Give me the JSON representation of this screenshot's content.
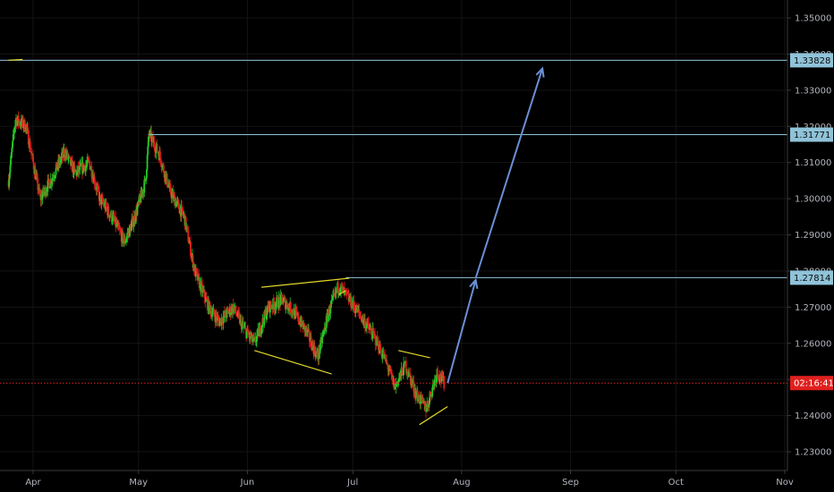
{
  "chart_data": {
    "type": "candlestick",
    "title": "",
    "instrument": "",
    "colors": {
      "up": "#26c926",
      "down": "#e0201e",
      "hline": "#8fc3d9",
      "arrow": "#6b8fd6",
      "trend": "#e3d72c",
      "current": "#e0201e",
      "background": "#000000",
      "axis_text": "#b2b5be"
    },
    "x_axis": {
      "labels": [
        {
          "text": "Apr",
          "date": "2018-04-01"
        },
        {
          "text": "May",
          "date": "2018-05-01"
        },
        {
          "text": "Jun",
          "date": "2018-06-01"
        },
        {
          "text": "Jul",
          "date": "2018-07-01"
        },
        {
          "text": "Aug",
          "date": "2018-08-01"
        },
        {
          "text": "Sep",
          "date": "2018-09-01"
        },
        {
          "text": "Oct",
          "date": "2018-10-01"
        },
        {
          "text": "Nov",
          "date": "2018-11-01"
        }
      ],
      "range": [
        "2018-03-25",
        "2018-11-01"
      ]
    },
    "y_axis": {
      "ticks": [
        "1.35000",
        "1.34000",
        "1.33000",
        "1.32000",
        "1.31000",
        "1.30000",
        "1.29000",
        "1.28000",
        "1.27000",
        "1.26000",
        "1.25000",
        "1.24000",
        "1.23000"
      ],
      "ylim": [
        1.2225,
        1.3535
      ]
    },
    "price_path": [
      {
        "date": "2018-03-25",
        "price": 1.305
      },
      {
        "date": "2018-03-27",
        "price": 1.322
      },
      {
        "date": "2018-03-30",
        "price": 1.32
      },
      {
        "date": "2018-04-03",
        "price": 1.3
      },
      {
        "date": "2018-04-06",
        "price": 1.305
      },
      {
        "date": "2018-04-10",
        "price": 1.313
      },
      {
        "date": "2018-04-13",
        "price": 1.307
      },
      {
        "date": "2018-04-17",
        "price": 1.31
      },
      {
        "date": "2018-04-20",
        "price": 1.3
      },
      {
        "date": "2018-04-24",
        "price": 1.294
      },
      {
        "date": "2018-04-27",
        "price": 1.288
      },
      {
        "date": "2018-04-30",
        "price": 1.295
      },
      {
        "date": "2018-05-03",
        "price": 1.305
      },
      {
        "date": "2018-05-04",
        "price": 1.318
      },
      {
        "date": "2018-05-07",
        "price": 1.312
      },
      {
        "date": "2018-05-10",
        "price": 1.302
      },
      {
        "date": "2018-05-14",
        "price": 1.295
      },
      {
        "date": "2018-05-17",
        "price": 1.28
      },
      {
        "date": "2018-05-21",
        "price": 1.27
      },
      {
        "date": "2018-05-24",
        "price": 1.266
      },
      {
        "date": "2018-05-28",
        "price": 1.27
      },
      {
        "date": "2018-05-31",
        "price": 1.264
      },
      {
        "date": "2018-06-03",
        "price": 1.26
      },
      {
        "date": "2018-06-07",
        "price": 1.27
      },
      {
        "date": "2018-06-11",
        "price": 1.272
      },
      {
        "date": "2018-06-14",
        "price": 1.269
      },
      {
        "date": "2018-06-18",
        "price": 1.263
      },
      {
        "date": "2018-06-21",
        "price": 1.256
      },
      {
        "date": "2018-06-24",
        "price": 1.268
      },
      {
        "date": "2018-06-27",
        "price": 1.276
      },
      {
        "date": "2018-06-30",
        "price": 1.272
      },
      {
        "date": "2018-07-03",
        "price": 1.268
      },
      {
        "date": "2018-07-07",
        "price": 1.262
      },
      {
        "date": "2018-07-10",
        "price": 1.256
      },
      {
        "date": "2018-07-13",
        "price": 1.248
      },
      {
        "date": "2018-07-16",
        "price": 1.254
      },
      {
        "date": "2018-07-19",
        "price": 1.246
      },
      {
        "date": "2018-07-22",
        "price": 1.242
      },
      {
        "date": "2018-07-25",
        "price": 1.252
      },
      {
        "date": "2018-07-27",
        "price": 1.249
      }
    ],
    "horizontal_lines": [
      {
        "price": 1.33828,
        "label": "1.33828"
      },
      {
        "price": 1.31771,
        "label": "1.31771",
        "start_date": "2018-05-04"
      },
      {
        "price": 1.27814,
        "label": "1.27814",
        "start_date": "2018-06-29"
      }
    ],
    "current_price": {
      "price": 1.249,
      "label": "02:16:41"
    },
    "trendlines": [
      {
        "from": {
          "date": "2018-03-25",
          "price": 1.3383
        },
        "to": {
          "date": "2018-03-29",
          "price": 1.3385
        }
      },
      {
        "from": {
          "date": "2018-06-03",
          "price": 1.258
        },
        "to": {
          "date": "2018-06-25",
          "price": 1.2515
        }
      },
      {
        "from": {
          "date": "2018-06-05",
          "price": 1.2755
        },
        "to": {
          "date": "2018-06-30",
          "price": 1.278
        }
      },
      {
        "from": {
          "date": "2018-06-27",
          "price": 1.2735
        },
        "to": {
          "date": "2018-06-29",
          "price": 1.2745
        }
      },
      {
        "from": {
          "date": "2018-07-14",
          "price": 1.258
        },
        "to": {
          "date": "2018-07-23",
          "price": 1.256
        }
      },
      {
        "from": {
          "date": "2018-07-20",
          "price": 1.2375
        },
        "to": {
          "date": "2018-07-28",
          "price": 1.2425
        }
      }
    ],
    "arrows": [
      {
        "from": {
          "date": "2018-07-28",
          "price": 1.249
        },
        "to": {
          "date": "2018-08-05",
          "price": 1.2775
        }
      },
      {
        "from": {
          "date": "2018-08-05",
          "price": 1.278
        },
        "to": {
          "date": "2018-08-24",
          "price": 1.336
        }
      }
    ]
  }
}
